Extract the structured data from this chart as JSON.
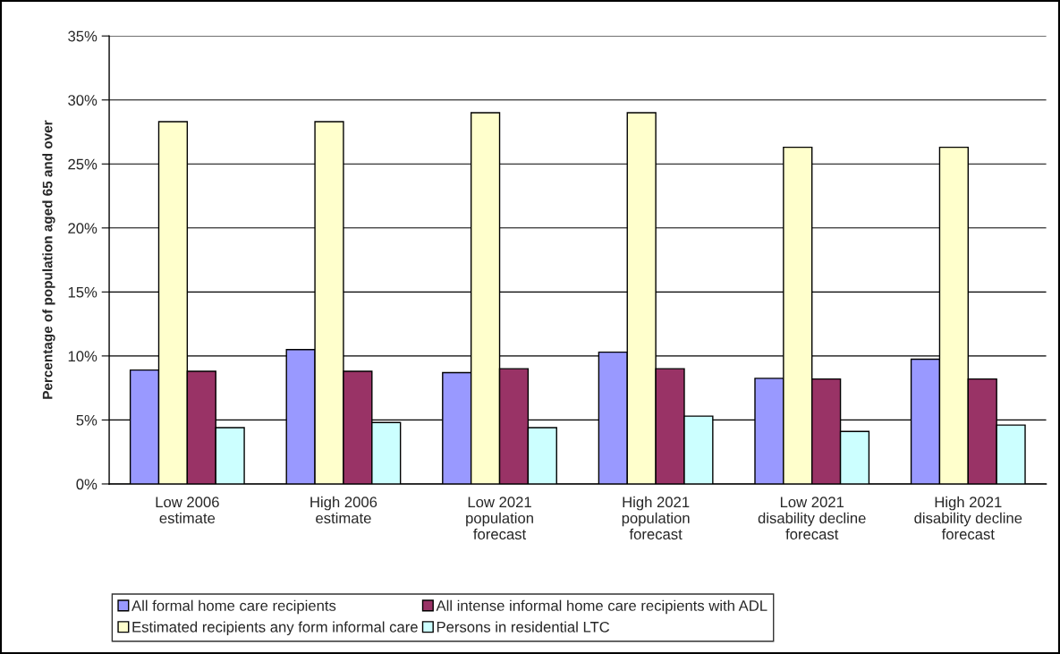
{
  "chart_data": {
    "type": "bar",
    "ylabel": "Percentage of population aged 65 and over",
    "categories": [
      "Low 2006\nestimate",
      "High 2006\nestimate",
      "Low 2021\npopulation\nforecast",
      "High 2021\npopulation\nforecast",
      "Low 2021\ndisability decline\nforecast",
      "High 2021\ndisability decline\nforecast"
    ],
    "series": [
      {
        "name": "All formal home care recipients",
        "color": "#9999ff",
        "values": [
          8.9,
          10.5,
          8.7,
          10.3,
          8.25,
          9.75
        ]
      },
      {
        "name": "Estimated recipients any form informal care",
        "color": "#ffffcc",
        "values": [
          28.3,
          28.3,
          29.0,
          29.0,
          26.3,
          26.3
        ]
      },
      {
        "name": "All intense informal home care recipients with ADL",
        "color": "#993366",
        "values": [
          8.8,
          8.8,
          9.0,
          9.0,
          8.2,
          8.2
        ]
      },
      {
        "name": "Persons in residential LTC",
        "color": "#ccffff",
        "values": [
          4.4,
          4.8,
          4.4,
          5.3,
          4.1,
          4.6
        ]
      }
    ],
    "ylim": [
      0,
      35
    ],
    "yticks": [
      {
        "value": 0,
        "label": "0%"
      },
      {
        "value": 5,
        "label": "5%"
      },
      {
        "value": 10,
        "label": "10%"
      },
      {
        "value": 15,
        "label": "15%"
      },
      {
        "value": 20,
        "label": "20%"
      },
      {
        "value": 25,
        "label": "25%"
      },
      {
        "value": 30,
        "label": "30%"
      },
      {
        "value": 35,
        "label": "35%"
      }
    ],
    "grid": "y",
    "legend": "bottom"
  }
}
